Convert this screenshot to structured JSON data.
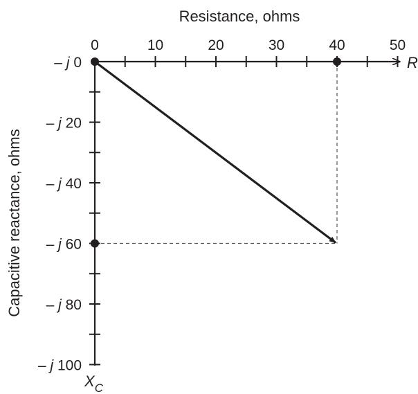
{
  "x_axis": {
    "title": "Resistance, ohms",
    "end_label": "R",
    "ticks": [
      {
        "value": 0,
        "label": "0"
      },
      {
        "value": 10,
        "label": "10"
      },
      {
        "value": 20,
        "label": "20"
      },
      {
        "value": 30,
        "label": "30"
      },
      {
        "value": 40,
        "label": "40"
      },
      {
        "value": 50,
        "label": "50"
      }
    ],
    "minor_step": 5,
    "min": 0,
    "max": 50
  },
  "y_axis": {
    "title": "Capacitive reactance, ohms",
    "end_label": "X",
    "end_label_sub": "C",
    "ticks": [
      {
        "value": 0,
        "prefix": "– ",
        "j": "j",
        "num": " 0"
      },
      {
        "value": 20,
        "prefix": "– ",
        "j": "j",
        "num": " 20"
      },
      {
        "value": 40,
        "prefix": "– ",
        "j": "j",
        "num": " 40"
      },
      {
        "value": 60,
        "prefix": "– ",
        "j": "j",
        "num": " 60"
      },
      {
        "value": 80,
        "prefix": "– ",
        "j": "j",
        "num": " 80"
      },
      {
        "value": 100,
        "prefix": "– ",
        "j": "j",
        "num": " 100"
      }
    ],
    "minor_step": 10,
    "min": 0,
    "max": 100
  },
  "vector": {
    "from": {
      "r": 0,
      "x": 0
    },
    "to": {
      "r": 40,
      "x": 60
    }
  },
  "points": [
    {
      "name": "origin-point",
      "r": 0,
      "x": 0
    },
    {
      "name": "r40-point",
      "r": 40,
      "x": 0
    },
    {
      "name": "x60-point",
      "r": 0,
      "x": 60
    }
  ],
  "colors": {
    "ink": "#231f20",
    "dashed": "#555555"
  }
}
